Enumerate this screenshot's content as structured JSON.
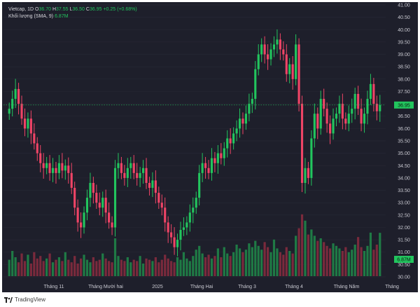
{
  "legend": {
    "symbol": "Vietcap, 1D",
    "o_label": "O",
    "open": "36.70",
    "h_label": "H",
    "high": "37.55",
    "l_label": "L",
    "low": "36.50",
    "c_label": "C",
    "close": "36.95",
    "change": "+0.25 (+0.68%)",
    "volume_label": "Khối lượng (SMA, 9)",
    "volume_value": "6.87M"
  },
  "footer": {
    "brand": "TradingView"
  },
  "colors": {
    "background": "#1e1f2b",
    "up": "#22c55e",
    "down": "#ef4466",
    "up_volume": "#1f7a45",
    "down_volume": "#7a2a3c",
    "price_tag": "#22c55e",
    "grid": "#2a2b38",
    "axis_text": "#c9c9d1"
  },
  "chart_data": {
    "type": "candlestick",
    "y_ticks": [
      "41.00",
      "40.50",
      "40.00",
      "39.50",
      "39.00",
      "38.50",
      "38.00",
      "37.50",
      "37.00",
      "36.50",
      "36.00",
      "35.50",
      "35.00",
      "34.50",
      "34.00",
      "33.50",
      "33.00",
      "32.50",
      "32.00",
      "31.50",
      "31.00",
      "30.50",
      "30.00"
    ],
    "ylim": [
      30.0,
      41.0
    ],
    "x_ticks": [
      "Tháng 11",
      "Tháng Mười hai",
      "2025",
      "Tháng Hai",
      "Tháng 3",
      "Tháng 4",
      "Tháng Năm",
      "Tháng"
    ],
    "last_price": "36.95",
    "last_volume": "6.87M",
    "closes": [
      36.8,
      37.2,
      37.6,
      37.0,
      36.4,
      36.0,
      36.4,
      35.8,
      35.4,
      35.0,
      34.6,
      34.4,
      34.6,
      34.2,
      34.4,
      34.2,
      34.6,
      34.3,
      34.5,
      34.2,
      33.6,
      32.8,
      32.2,
      32.0,
      32.6,
      33.2,
      33.8,
      33.4,
      33.0,
      32.8,
      33.2,
      32.6,
      32.2,
      32.0,
      34.4,
      34.6,
      34.2,
      34.0,
      34.4,
      34.6,
      34.2,
      34.0,
      34.2,
      34.4,
      33.8,
      33.6,
      33.9,
      33.4,
      33.0,
      32.8,
      32.2,
      31.8,
      31.6,
      31.2,
      31.5,
      31.9,
      32.0,
      32.2,
      32.6,
      32.8,
      33.2,
      34.2,
      34.6,
      34.4,
      34.2,
      34.8,
      34.6,
      35.0,
      34.8,
      35.2,
      35.6,
      35.4,
      35.8,
      36.0,
      36.4,
      36.2,
      36.6,
      37.0,
      37.2,
      38.4,
      39.0,
      39.4,
      39.0,
      38.8,
      39.2,
      39.4,
      39.6,
      39.2,
      39.0,
      38.2,
      38.6,
      38.0,
      39.4,
      37.0,
      33.8,
      34.4,
      34.0,
      35.6,
      36.6,
      36.0,
      37.2,
      36.8,
      36.2,
      35.8,
      36.4,
      36.6,
      37.0,
      36.4,
      36.2,
      36.6,
      36.8,
      37.4,
      36.8,
      36.2,
      36.6,
      37.2,
      37.8,
      37.0,
      36.7,
      36.95
    ],
    "volumes": [
      2.6,
      4.0,
      3.0,
      2.2,
      3.6,
      2.4,
      3.4,
      2.0,
      3.8,
      2.8,
      3.2,
      2.4,
      2.8,
      3.6,
      2.2,
      2.6,
      3.0,
      2.4,
      3.8,
      2.6,
      2.2,
      3.2,
      2.0,
      2.8,
      3.4,
      2.6,
      2.2,
      3.0,
      2.4,
      2.6,
      3.6,
      2.8,
      2.4,
      2.2,
      6.0,
      3.2,
      2.6,
      2.4,
      3.0,
      2.2,
      2.6,
      2.4,
      3.2,
      2.0,
      2.8,
      2.6,
      2.4,
      3.0,
      2.2,
      2.6,
      3.4,
      2.8,
      2.4,
      2.2,
      3.0,
      2.6,
      3.8,
      2.8,
      2.4,
      3.2,
      4.2,
      4.8,
      3.6,
      3.0,
      3.4,
      2.8,
      3.2,
      4.4,
      3.0,
      4.6,
      3.6,
      3.2,
      3.8,
      5.0,
      4.4,
      3.8,
      4.2,
      5.2,
      4.6,
      5.6,
      4.8,
      4.2,
      5.4,
      4.6,
      3.8,
      5.8,
      4.4,
      3.8,
      3.4,
      4.6,
      4.0,
      3.6,
      6.4,
      7.6,
      9.8,
      8.8,
      6.6,
      7.4,
      6.4,
      5.6,
      6.0,
      5.4,
      4.8,
      4.4,
      5.2,
      4.8,
      4.4,
      4.0,
      4.6,
      3.8,
      4.2,
      5.0,
      6.2,
      4.6,
      4.0,
      4.8,
      6.9,
      4.2,
      5.0,
      6.87
    ]
  }
}
